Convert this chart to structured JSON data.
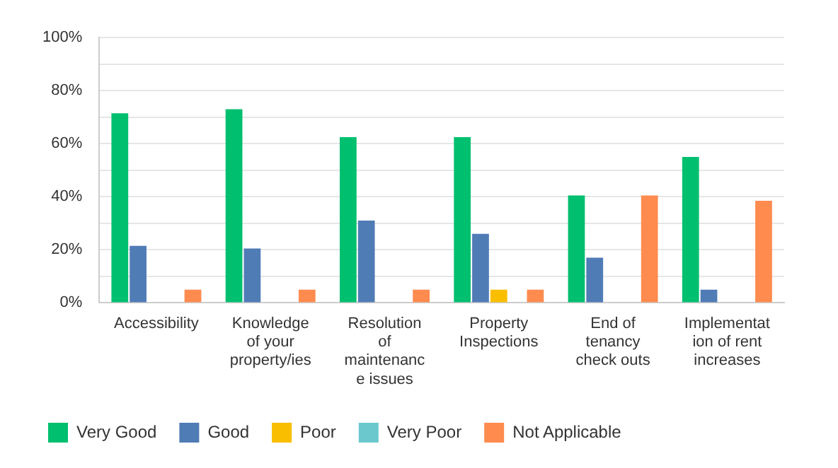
{
  "chart_data": {
    "type": "bar",
    "categories": [
      "Accessibility",
      "Knowledge of your property/ies",
      "Resolution of maintenance issues",
      "Property Inspections",
      "End of tenancy check outs",
      "Implementation of rent increases"
    ],
    "series": [
      {
        "name": "Very Good",
        "color": "#00bf6f",
        "values": [
          71.5,
          73,
          62.5,
          62.5,
          40.5,
          55
        ]
      },
      {
        "name": "Good",
        "color": "#507cb6",
        "values": [
          21.5,
          20.5,
          31,
          26,
          17,
          5
        ]
      },
      {
        "name": "Poor",
        "color": "#f9be00",
        "values": [
          0,
          0,
          0,
          5,
          0,
          0
        ]
      },
      {
        "name": "Very Poor",
        "color": "#6bc8cd",
        "values": [
          0,
          0,
          0,
          0,
          0,
          0
        ]
      },
      {
        "name": "Not Applicable",
        "color": "#ff8b4f",
        "values": [
          5,
          5,
          5,
          5,
          40.5,
          38.5
        ]
      }
    ],
    "ylim": [
      0,
      100
    ],
    "yticks": [
      {
        "value": 0,
        "label": "0%"
      },
      {
        "value": 10,
        "label": null
      },
      {
        "value": 20,
        "label": "20%"
      },
      {
        "value": 30,
        "label": null
      },
      {
        "value": 40,
        "label": "40%"
      },
      {
        "value": 50,
        "label": null
      },
      {
        "value": 60,
        "label": "60%"
      },
      {
        "value": 70,
        "label": null
      },
      {
        "value": 80,
        "label": "80%"
      },
      {
        "value": 90,
        "label": null
      },
      {
        "value": 100,
        "label": "100%"
      }
    ],
    "grid": "y",
    "legend": "bottom"
  }
}
